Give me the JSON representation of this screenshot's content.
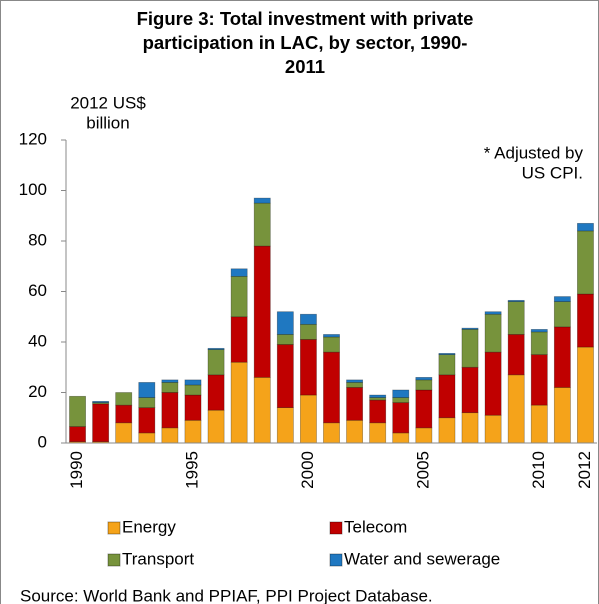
{
  "chart_data": {
    "type": "stacked_bar",
    "title": [
      "Figure 3: Total investment with private",
      "participation in LAC, by sector,  1990-",
      "2011"
    ],
    "y_label": [
      "2012 US$",
      "billion"
    ],
    "annotation": [
      "* Adjusted by",
      "US CPI."
    ],
    "source": "Source:  World Bank and PPIAF, PPI Project Database.",
    "categories": [
      "1990",
      null,
      null,
      null,
      null,
      "1995",
      null,
      null,
      null,
      null,
      "2000",
      null,
      null,
      null,
      null,
      "2005",
      null,
      null,
      null,
      null,
      "2010",
      null,
      "2012"
    ],
    "series": [
      {
        "name": "Energy",
        "color": "#f5a31a",
        "values": [
          0.5,
          0.5,
          8,
          4,
          6,
          9,
          13,
          32,
          26,
          14,
          19,
          8,
          9,
          8,
          4,
          6,
          10,
          12,
          11,
          27,
          15,
          22,
          38
        ]
      },
      {
        "name": "Telecom",
        "color": "#c00000",
        "values": [
          6,
          15,
          7,
          10,
          14,
          10,
          14,
          18,
          52,
          25,
          22,
          28,
          13,
          9,
          12,
          15,
          17,
          18,
          25,
          16,
          20,
          24,
          21
        ]
      },
      {
        "name": "Transport",
        "color": "#77933c",
        "values": [
          12,
          0.5,
          5,
          4,
          4,
          4,
          10,
          16,
          17,
          4,
          6,
          6,
          2,
          1,
          2,
          4,
          8,
          15,
          15,
          13,
          9,
          10,
          25
        ]
      },
      {
        "name": "Water and sewerage",
        "color": "#1f78c1",
        "values": [
          0,
          0.5,
          0,
          6,
          1,
          2,
          0.5,
          3,
          2,
          9,
          4,
          1,
          1,
          1,
          3,
          1,
          0.5,
          0.5,
          1,
          0.5,
          1,
          2,
          3
        ]
      }
    ],
    "ylim": [
      0,
      120
    ],
    "yticks": [
      0,
      20,
      40,
      60,
      80,
      100,
      120
    ]
  }
}
